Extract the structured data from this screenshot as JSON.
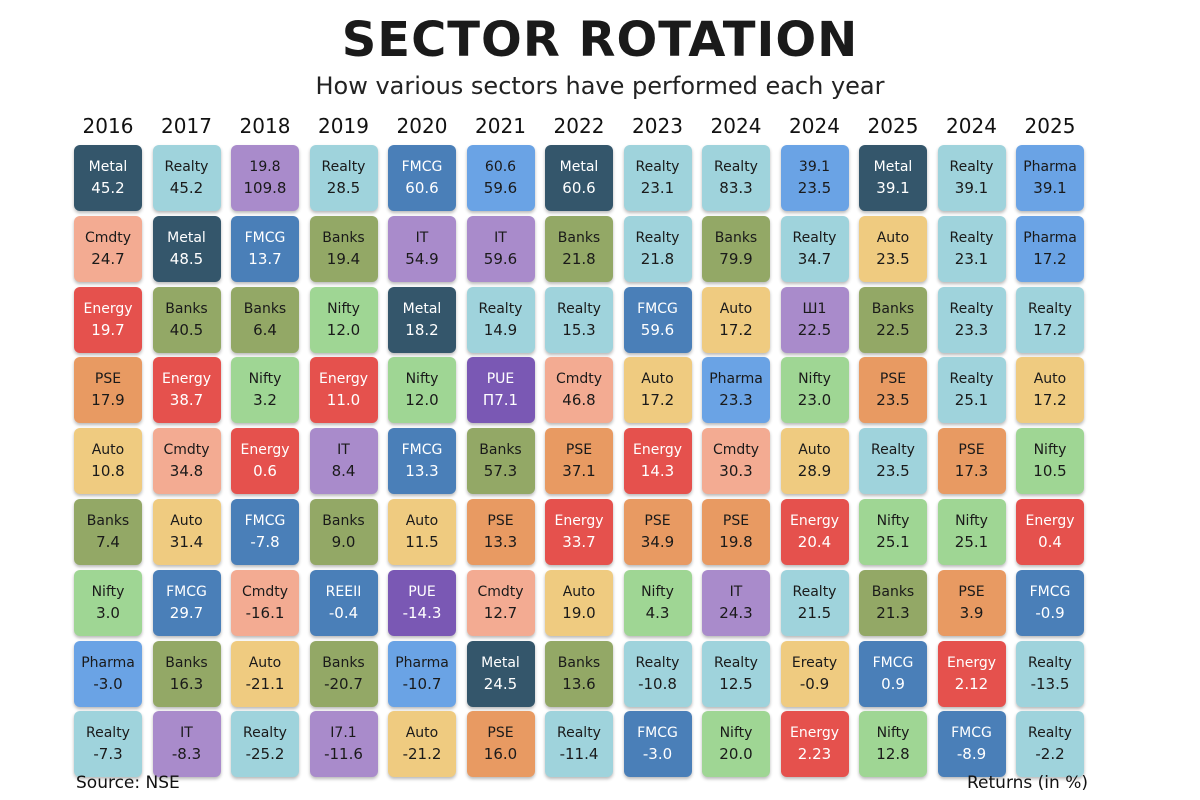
{
  "title": "SECTOR ROTATION",
  "subtitle": "How various sectors have performed each year",
  "source": "Source: NSE",
  "units_note": "Returns (in %)",
  "colors": {
    "Metal": "#34566b",
    "Realty": "#9fd3dc",
    "FMCG": "#4a7fb8",
    "IT": "#a98bcb",
    "Banks": "#93a866",
    "Cmdty": "#f3ab92",
    "Energy": "#e5514d",
    "PSE": "#e89a62",
    "Auto": "#efcb80",
    "Nifty": "#9fd694",
    "Pharma": "#6aa3e5",
    "PUE": "#7a58b4",
    "19.8": "#a98bcb",
    "60.6": "#6aa3e5",
    "39.1": "#6aa3e5",
    "Ш1": "#a98bcb",
    "RЕЕІІ": "#4a7fb8",
    "Ereaty": "#efcb80",
    "І7.1": "#a98bcb"
  },
  "chart_data": {
    "type": "table",
    "title": "SECTOR ROTATION",
    "subtitle": "How various sectors have performed each year",
    "columns": [
      "2016",
      "2017",
      "2018",
      "2019",
      "2020",
      "2021",
      "2022",
      "2023",
      "2024",
      "2024",
      "2025",
      "2024",
      "2025"
    ],
    "cells": [
      [
        {
          "sector": "Metal",
          "value": "45.2"
        },
        {
          "sector": "Cmdty",
          "value": "24.7"
        },
        {
          "sector": "Energy",
          "value": "19.7"
        },
        {
          "sector": "PSE",
          "value": "17.9"
        },
        {
          "sector": "Auto",
          "value": "10.8"
        },
        {
          "sector": "Banks",
          "value": "7.4"
        },
        {
          "sector": "Nifty",
          "value": "3.0"
        },
        {
          "sector": "Pharma",
          "value": "-3.0"
        },
        {
          "sector": "Realty",
          "value": "-7.3"
        }
      ],
      [
        {
          "sector": "Realty",
          "value": "45.2"
        },
        {
          "sector": "Metal",
          "value": "48.5"
        },
        {
          "sector": "Banks",
          "value": "40.5"
        },
        {
          "sector": "Energy",
          "value": "38.7"
        },
        {
          "sector": "Cmdty",
          "value": "34.8"
        },
        {
          "sector": "Auto",
          "value": "31.4"
        },
        {
          "sector": "FMCG",
          "value": "29.7"
        },
        {
          "sector": "Banks",
          "value": "16.3"
        },
        {
          "sector": "IT",
          "value": "-8.3"
        }
      ],
      [
        {
          "sector": "19.8",
          "value": "109.8"
        },
        {
          "sector": "FMCG",
          "value": "13.7"
        },
        {
          "sector": "Banks",
          "value": "6.4"
        },
        {
          "sector": "Nifty",
          "value": "3.2"
        },
        {
          "sector": "Energy",
          "value": "0.6"
        },
        {
          "sector": "FMCG",
          "value": "-7.8"
        },
        {
          "sector": "Cmdty",
          "value": "-16.1"
        },
        {
          "sector": "Auto",
          "value": "-21.1"
        },
        {
          "sector": "Realty",
          "value": "-25.2"
        }
      ],
      [
        {
          "sector": "Realty",
          "value": "28.5"
        },
        {
          "sector": "Banks",
          "value": "19.4"
        },
        {
          "sector": "Nifty",
          "value": "12.0"
        },
        {
          "sector": "Energy",
          "value": "11.0"
        },
        {
          "sector": "IT",
          "value": "8.4"
        },
        {
          "sector": "Banks",
          "value": "9.0"
        },
        {
          "sector": "RЕЕІІ",
          "value": "-0.4"
        },
        {
          "sector": "Banks",
          "value": "-20.7"
        },
        {
          "sector": "І7.1",
          "value": "-11.6"
        }
      ],
      [
        {
          "sector": "FMCG",
          "value": "60.6"
        },
        {
          "sector": "IT",
          "value": "54.9"
        },
        {
          "sector": "Metal",
          "value": "18.2"
        },
        {
          "sector": "Nifty",
          "value": "12.0"
        },
        {
          "sector": "FMCG",
          "value": "13.3"
        },
        {
          "sector": "Auto",
          "value": "11.5"
        },
        {
          "sector": "PUE",
          "value": "-14.3"
        },
        {
          "sector": "Pharma",
          "value": "-10.7"
        },
        {
          "sector": "Auto",
          "value": "-21.2"
        }
      ],
      [
        {
          "sector": "60.6",
          "value": "59.6"
        },
        {
          "sector": "IT",
          "value": "59.6"
        },
        {
          "sector": "Realty",
          "value": "14.9"
        },
        {
          "sector": "PUE",
          "value": "П7.1"
        },
        {
          "sector": "Banks",
          "value": "57.3"
        },
        {
          "sector": "PSE",
          "value": "13.3"
        },
        {
          "sector": "Cmdty",
          "value": "12.7"
        },
        {
          "sector": "Metal",
          "value": "24.5"
        },
        {
          "sector": "PSE",
          "value": "16.0"
        }
      ],
      [
        {
          "sector": "Metal",
          "value": "60.6"
        },
        {
          "sector": "Banks",
          "value": "21.8"
        },
        {
          "sector": "Realty",
          "value": "15.3"
        },
        {
          "sector": "Cmdty",
          "value": "46.8"
        },
        {
          "sector": "PSE",
          "value": "37.1"
        },
        {
          "sector": "Energy",
          "value": "33.7"
        },
        {
          "sector": "Auto",
          "value": "19.0"
        },
        {
          "sector": "Banks",
          "value": "13.6"
        },
        {
          "sector": "Realty",
          "value": "-11.4"
        }
      ],
      [
        {
          "sector": "Realty",
          "value": "23.1"
        },
        {
          "sector": "Realty",
          "value": "21.8"
        },
        {
          "sector": "FMCG",
          "value": "59.6"
        },
        {
          "sector": "Auto",
          "value": "17.2"
        },
        {
          "sector": "Energy",
          "value": "14.3"
        },
        {
          "sector": "PSE",
          "value": "34.9"
        },
        {
          "sector": "Nifty",
          "value": "4.3"
        },
        {
          "sector": "Realty",
          "value": "-10.8"
        },
        {
          "sector": "FMCG",
          "value": "-3.0"
        }
      ],
      [
        {
          "sector": "Realty",
          "value": "83.3"
        },
        {
          "sector": "Banks",
          "value": "79.9"
        },
        {
          "sector": "Auto",
          "value": "17.2"
        },
        {
          "sector": "Pharma",
          "value": "23.3"
        },
        {
          "sector": "Cmdty",
          "value": "30.3"
        },
        {
          "sector": "PSE",
          "value": "19.8"
        },
        {
          "sector": "IT",
          "value": "24.3"
        },
        {
          "sector": "Realty",
          "value": "12.5"
        },
        {
          "sector": "Nifty",
          "value": "20.0"
        }
      ],
      [
        {
          "sector": "39.1",
          "value": "23.5"
        },
        {
          "sector": "Realty",
          "value": "34.7"
        },
        {
          "sector": "Ш1",
          "value": "22.5"
        },
        {
          "sector": "Nifty",
          "value": "23.0"
        },
        {
          "sector": "Auto",
          "value": "28.9"
        },
        {
          "sector": "Energy",
          "value": "20.4"
        },
        {
          "sector": "Realty",
          "value": "21.5"
        },
        {
          "sector": "Ereaty",
          "value": "-0.9"
        },
        {
          "sector": "Energy",
          "value": "2.23"
        }
      ],
      [
        {
          "sector": "Metal",
          "value": "39.1"
        },
        {
          "sector": "Auto",
          "value": "23.5"
        },
        {
          "sector": "Banks",
          "value": "22.5"
        },
        {
          "sector": "PSE",
          "value": "23.5"
        },
        {
          "sector": "Realty",
          "value": "23.5"
        },
        {
          "sector": "Nifty",
          "value": "25.1"
        },
        {
          "sector": "Banks",
          "value": "21.3"
        },
        {
          "sector": "FMCG",
          "value": "0.9"
        },
        {
          "sector": "Nifty",
          "value": "12.8"
        }
      ],
      [
        {
          "sector": "Realty",
          "value": "39.1"
        },
        {
          "sector": "Realty",
          "value": "23.1"
        },
        {
          "sector": "Realty",
          "value": "23.3"
        },
        {
          "sector": "Realty",
          "value": "25.1"
        },
        {
          "sector": "PSE",
          "value": "17.3"
        },
        {
          "sector": "Nifty",
          "value": "25.1"
        },
        {
          "sector": "PSE",
          "value": "3.9"
        },
        {
          "sector": "Energy",
          "value": "2.12"
        },
        {
          "sector": "FMCG",
          "value": "-8.9"
        }
      ],
      [
        {
          "sector": "Pharma",
          "value": "39.1"
        },
        {
          "sector": "Pharma",
          "value": "17.2"
        },
        {
          "sector": "Realty",
          "value": "17.2"
        },
        {
          "sector": "Auto",
          "value": "17.2"
        },
        {
          "sector": "Nifty",
          "value": "10.5"
        },
        {
          "sector": "Energy",
          "value": "0.4"
        },
        {
          "sector": "FMCG",
          "value": "-0.9"
        },
        {
          "sector": "Realty",
          "value": "-13.5"
        },
        {
          "sector": "Realty",
          "value": "-2.2"
        }
      ]
    ]
  }
}
